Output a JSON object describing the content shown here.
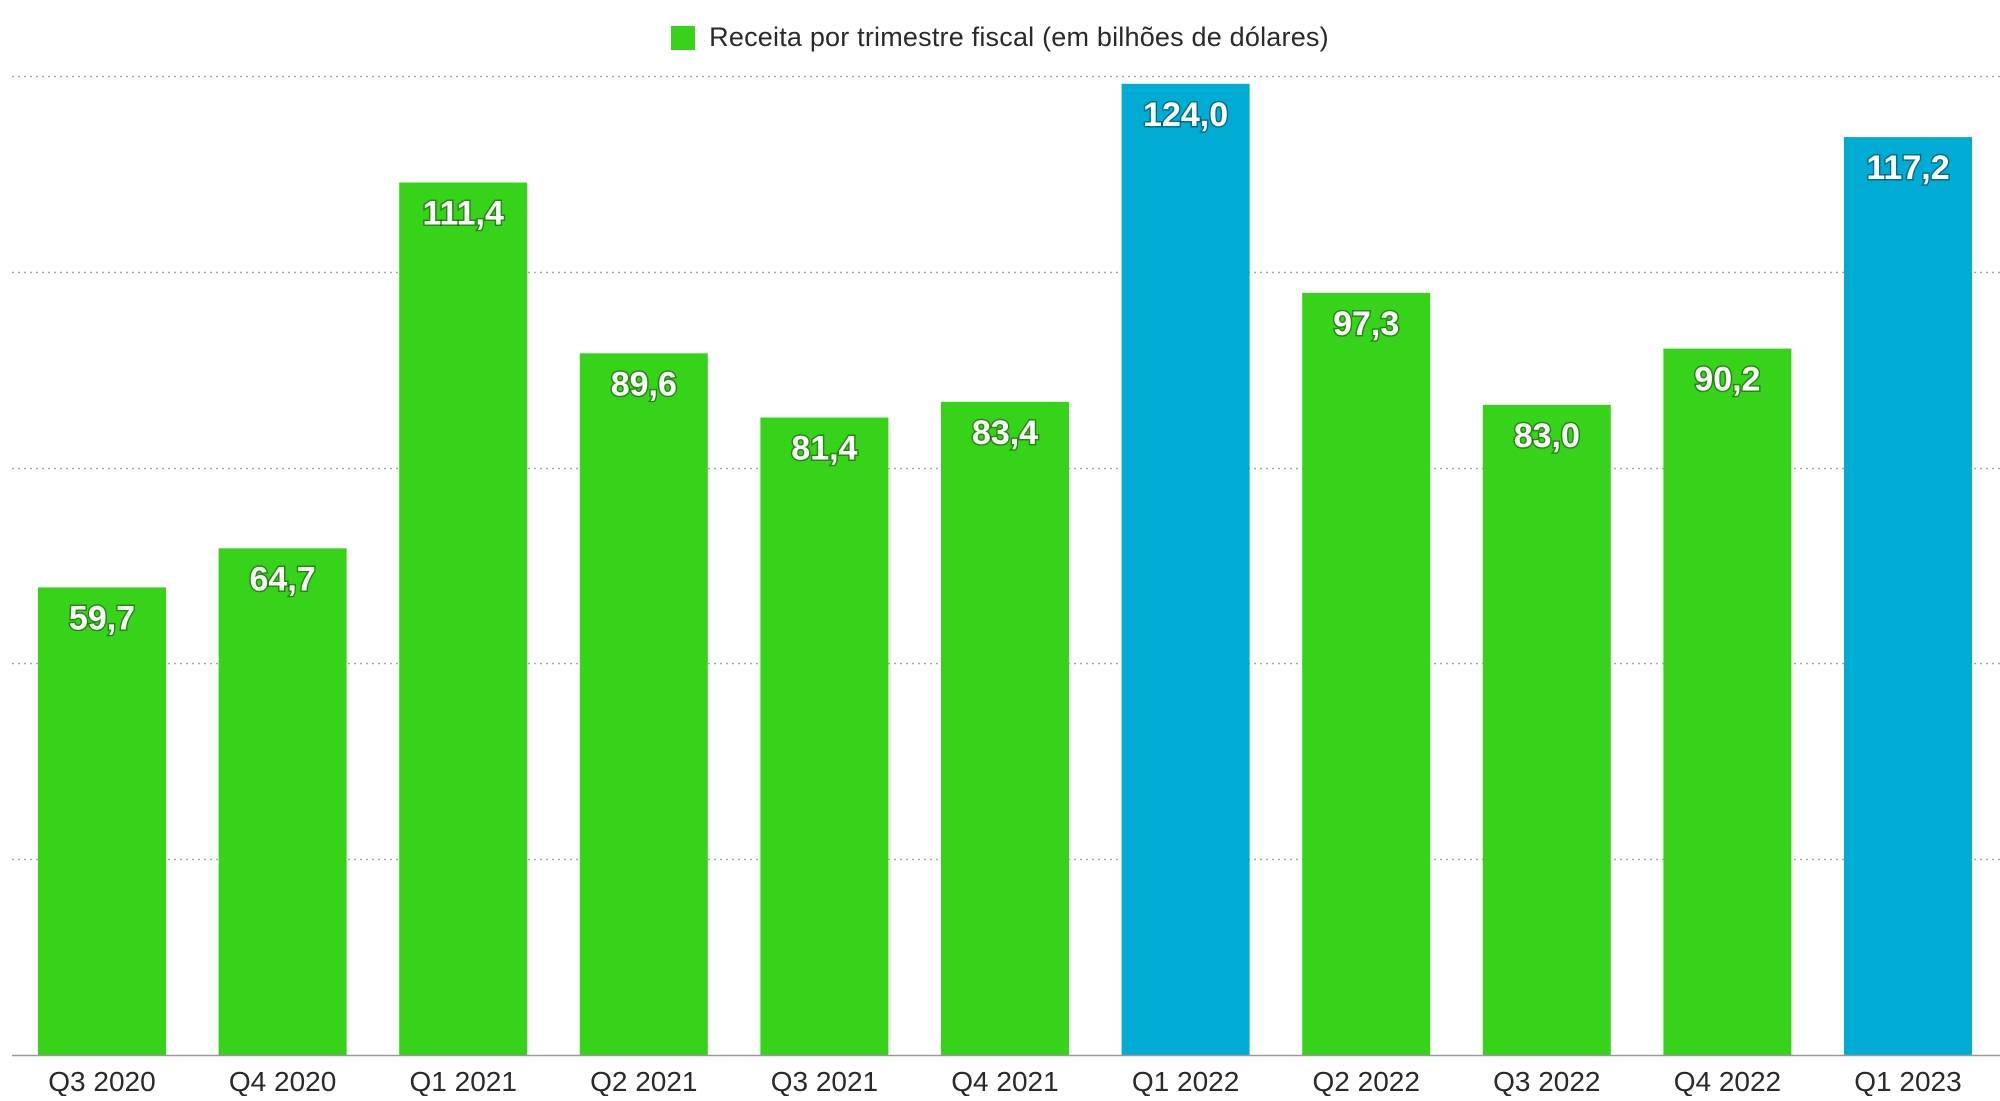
{
  "chart_data": {
    "type": "bar",
    "title": "",
    "xlabel": "",
    "ylabel": "",
    "legend": {
      "label": "Receita por trimestre fiscal (em bilhões de dólares)",
      "position": "top-center",
      "color": "#36d31a"
    },
    "categories": [
      "Q3 2020",
      "Q4 2020",
      "Q1 2021",
      "Q2 2021",
      "Q3 2021",
      "Q4 2021",
      "Q1 2022",
      "Q2 2022",
      "Q3 2022",
      "Q4 2022",
      "Q1 2023"
    ],
    "values": [
      59.7,
      64.7,
      111.4,
      89.6,
      81.4,
      83.4,
      124.0,
      97.3,
      83.0,
      90.2,
      117.2
    ],
    "value_labels": [
      "59,7",
      "64,7",
      "111,4",
      "89,6",
      "81,4",
      "83,4",
      "124,0",
      "97,3",
      "83,0",
      "90,2",
      "117,2"
    ],
    "highlighted": [
      false,
      false,
      false,
      false,
      false,
      false,
      true,
      false,
      false,
      false,
      true
    ],
    "colors": {
      "default": "#36d31a",
      "highlight": "#00acd4",
      "gridline": "#aaaaaa",
      "axis": "#999999"
    },
    "ylim": [
      0,
      125
    ],
    "gridlines": [
      25,
      50,
      75,
      100,
      125
    ],
    "grid": true
  }
}
